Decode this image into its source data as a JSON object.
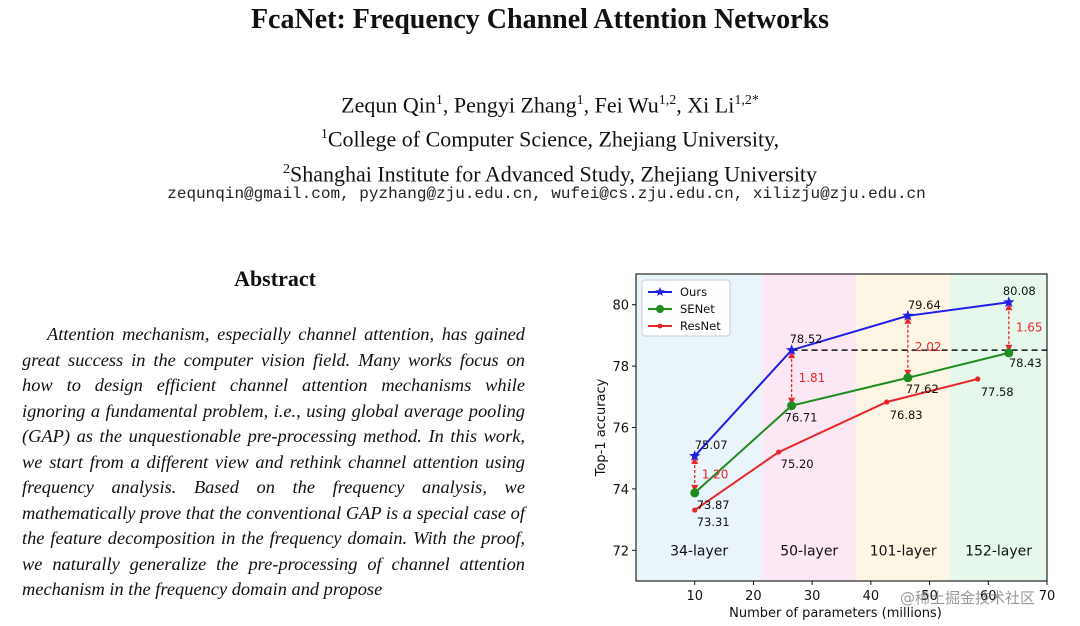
{
  "paper": {
    "title": "FcaNet: Frequency Channel Attention Networks",
    "authors": [
      {
        "name": "Zequn Qin",
        "sup": "1"
      },
      {
        "name": "Pengyi Zhang",
        "sup": "1"
      },
      {
        "name": "Fei Wu",
        "sup": "1,2"
      },
      {
        "name": "Xi Li",
        "sup": "1,2*"
      }
    ],
    "affiliations": [
      {
        "sup": "1",
        "text": "College of Computer Science, Zhejiang University,"
      },
      {
        "sup": "2",
        "text": "Shanghai Institute for Advanced Study, Zhejiang University"
      }
    ],
    "emails": "zequnqin@gmail.com, pyzhang@zju.edu.cn, wufei@cs.zju.edu.cn, xilizju@zju.edu.cn",
    "abstract_heading": "Abstract",
    "abstract_text": "Attention mechanism, especially channel attention, has gained great success in the computer vision field. Many works focus on how to design efficient channel attention mechanisms while ignoring a fundamental problem, i.e., using global average pooling (GAP) as the unquestionable pre-processing method. In this work, we start from a different view and rethink channel attention using frequency analysis. Based on the frequency analysis, we mathematically prove that the conventional GAP is a special case of the feature decomposition in the frequency domain. With the proof, we naturally generalize the pre-processing of channel attention mechanism in the frequency domain and propose",
    "watermark": "@稀土掘金技术社区"
  },
  "chart_data": {
    "type": "line",
    "title": "",
    "xlabel": "Number of parameters (millions)",
    "ylabel": "Top-1 accuracy",
    "xlim": [
      0,
      70
    ],
    "ylim": [
      71,
      81
    ],
    "xticks": [
      10,
      20,
      30,
      40,
      50,
      60,
      70
    ],
    "yticks": [
      72,
      74,
      76,
      78,
      80
    ],
    "legend_position": "top-left",
    "grid": false,
    "series": [
      {
        "name": "Ours",
        "color": "#1f1fe6",
        "marker": "star",
        "x": [
          10,
          26.5,
          46.3,
          63.5
        ],
        "y": [
          75.07,
          78.52,
          79.64,
          80.08
        ],
        "labels": [
          "75.07",
          "78.52",
          "79.64",
          "80.08"
        ]
      },
      {
        "name": "SENet",
        "color": "#1e8c1e",
        "marker": "circle",
        "x": [
          10,
          26.5,
          46.3,
          63.5
        ],
        "y": [
          73.87,
          76.71,
          77.62,
          78.43
        ],
        "labels": [
          "73.87",
          "76.71",
          "77.62",
          "78.43"
        ]
      },
      {
        "name": "ResNet",
        "color": "#e8272b",
        "marker": "dot",
        "x": [
          10,
          24.3,
          42.7,
          58.2
        ],
        "y": [
          73.31,
          75.2,
          76.83,
          77.58
        ],
        "labels": [
          "73.31",
          "75.20",
          "76.83",
          "77.58"
        ]
      }
    ],
    "regions": [
      {
        "label": "34-layer",
        "x0": 0,
        "x1": 21.5,
        "color": "#eaf4fb"
      },
      {
        "label": "50-layer",
        "x0": 21.5,
        "x1": 37.5,
        "color": "#fbe8f4"
      },
      {
        "label": "101-layer",
        "x0": 37.5,
        "x1": 53.5,
        "color": "#fdf6e4"
      },
      {
        "label": "152-layer",
        "x0": 53.5,
        "x1": 70,
        "color": "#e6f8ec"
      }
    ],
    "reference_line": {
      "y": 78.52,
      "x0": 26.5,
      "x1": 70
    },
    "gaps": [
      {
        "x": 10,
        "y0": 73.87,
        "y1": 75.07,
        "label": "1.20"
      },
      {
        "x": 26.5,
        "y0": 76.71,
        "y1": 78.52,
        "label": "1.81"
      },
      {
        "x": 46.3,
        "y0": 77.62,
        "y1": 79.64,
        "label": "2.02"
      },
      {
        "x": 63.5,
        "y0": 78.43,
        "y1": 80.08,
        "label": "1.65"
      }
    ]
  }
}
